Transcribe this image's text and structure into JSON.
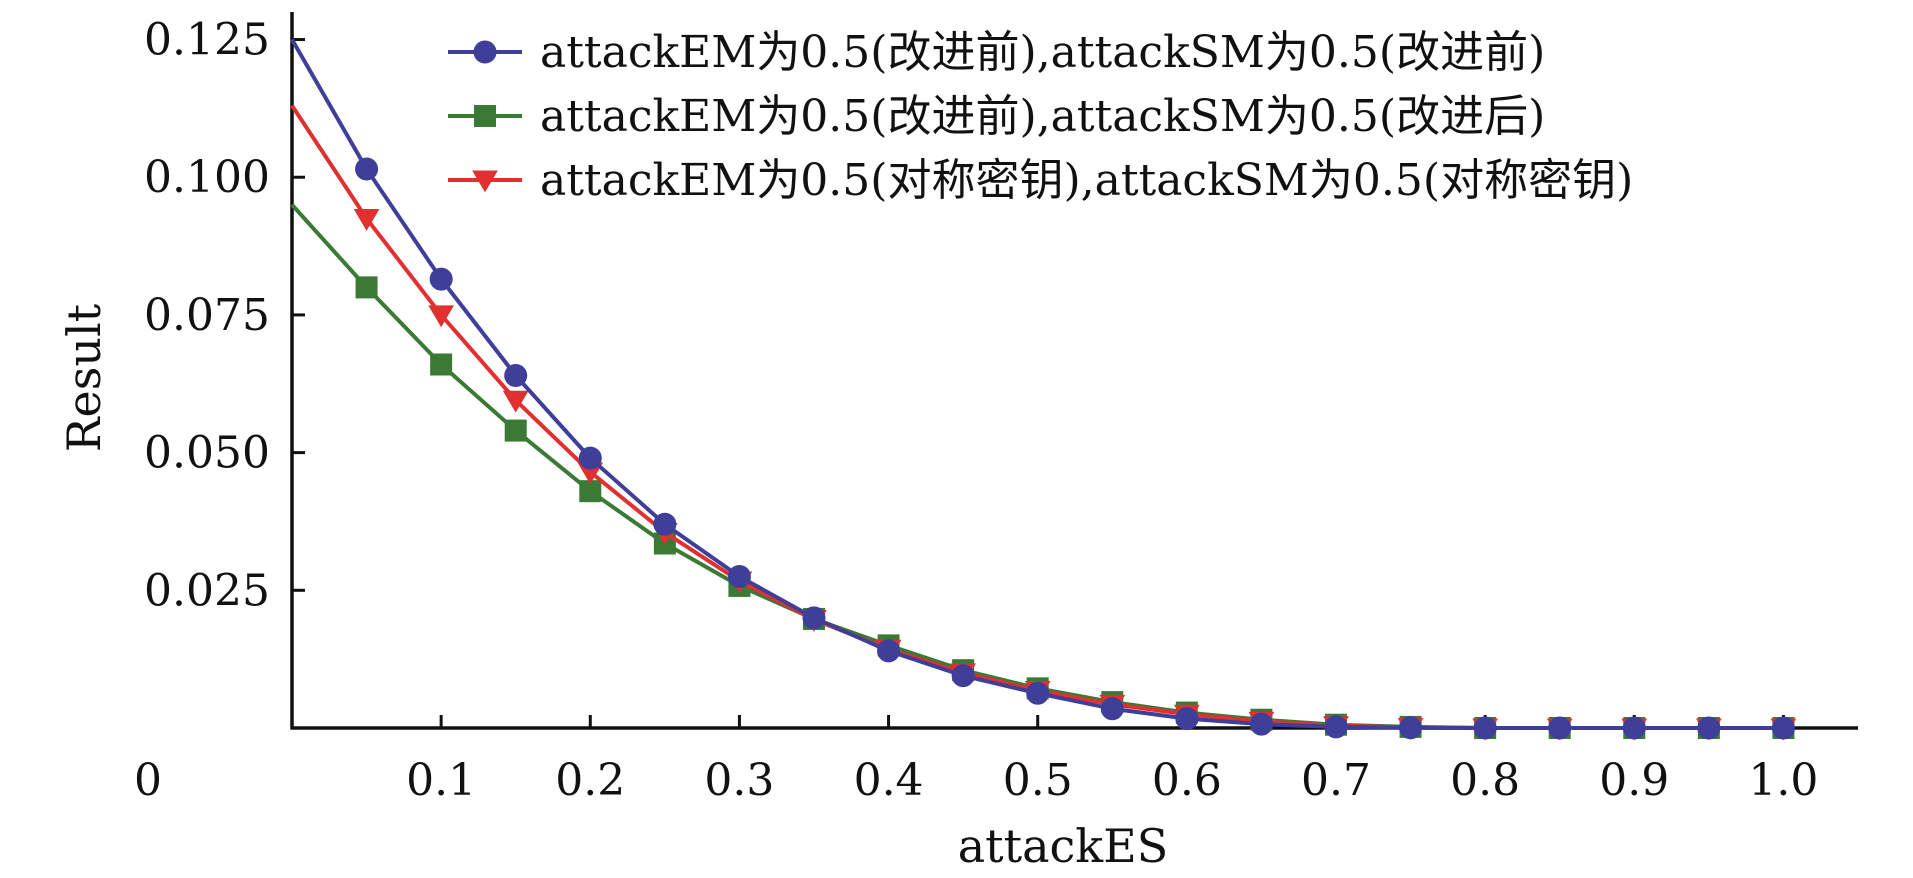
{
  "chart_data": {
    "type": "line",
    "title": "",
    "xlabel": "attackES",
    "ylabel": "Result",
    "xlim": [
      0,
      1.05
    ],
    "ylim": [
      0,
      0.13
    ],
    "x_origin_label": "0",
    "x_ticks": [
      0.1,
      0.2,
      0.3,
      0.4,
      0.5,
      0.6,
      0.7,
      0.8,
      0.9,
      1.0
    ],
    "x_tick_labels": [
      "0.1",
      "0.2",
      "0.3",
      "0.4",
      "0.5",
      "0.6",
      "0.7",
      "0.8",
      "0.9",
      "1.0"
    ],
    "y_ticks": [
      0.025,
      0.05,
      0.075,
      0.1,
      0.125
    ],
    "y_tick_labels": [
      "0.025",
      "0.050",
      "0.075",
      "0.100",
      "0.125"
    ],
    "grid": false,
    "legend_position": "top-right",
    "x": [
      0,
      0.05,
      0.1,
      0.15,
      0.2,
      0.25,
      0.3,
      0.35,
      0.4,
      0.45,
      0.5,
      0.55,
      0.6,
      0.65,
      0.7,
      0.75,
      0.8,
      0.85,
      0.9,
      0.95,
      1.0
    ],
    "series": [
      {
        "name": "attackEM为0.5(改进前),attackSM为0.5(改进前)",
        "color": "#3f3f9a",
        "marker": "circle",
        "values": [
          0.125,
          0.1015,
          0.0815,
          0.064,
          0.049,
          0.037,
          0.0275,
          0.02,
          0.014,
          0.0095,
          0.0063,
          0.0035,
          0.0017,
          0.0007,
          0.0002,
          5e-05,
          0.0,
          0.0,
          0.0,
          0.0,
          0.0
        ]
      },
      {
        "name": "attackEM为0.5(改进前),attackSM为0.5(改进后)",
        "color": "#3a7a35",
        "marker": "square",
        "values": [
          0.095,
          0.08,
          0.066,
          0.054,
          0.043,
          0.0335,
          0.0258,
          0.0198,
          0.015,
          0.0105,
          0.0072,
          0.0047,
          0.0028,
          0.0015,
          0.0006,
          0.0002,
          0.0,
          0.0,
          0.0,
          0.0,
          0.0
        ]
      },
      {
        "name": "attackEM为0.5(对称密钥),attackSM为0.5(对称密钥)",
        "color": "#e03030",
        "marker": "triangle-down",
        "values": [
          0.113,
          0.0925,
          0.075,
          0.0595,
          0.0465,
          0.0355,
          0.0267,
          0.0197,
          0.0143,
          0.01,
          0.0068,
          0.0043,
          0.0025,
          0.0012,
          0.0004,
          0.0001,
          0.0,
          0.0,
          0.0,
          0.0,
          0.0
        ]
      }
    ]
  }
}
